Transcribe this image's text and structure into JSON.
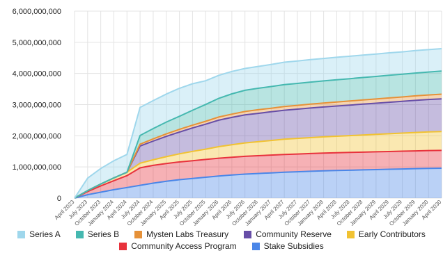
{
  "chart_data": {
    "type": "area",
    "stacked": true,
    "categories": [
      "April 2023",
      "July 2023",
      "October 2023",
      "January 2024",
      "April 2024",
      "July 2024",
      "October 2024",
      "January 2025",
      "April 2025",
      "July 2025",
      "October 2025",
      "January 2026",
      "April 2026",
      "July 2026",
      "October 2026",
      "January 2027",
      "April 2027",
      "July 2027",
      "October 2027",
      "January 2028",
      "April 2028",
      "July 2028",
      "October 2028",
      "January 2029",
      "April 2029",
      "July 2029",
      "October 2029",
      "January 2030",
      "April 2030"
    ],
    "ylim": [
      0,
      6000000000
    ],
    "yticks": [
      0,
      1000000000,
      2000000000,
      3000000000,
      4000000000,
      5000000000,
      6000000000
    ],
    "ytick_labels": [
      "0",
      "1,000,000,000",
      "2,000,000,000",
      "3,000,000,000",
      "4,000,000,000",
      "5,000,000,000",
      "6,000,000,000"
    ],
    "grid": true,
    "legend_position": "bottom",
    "series": [
      {
        "name": "Stake Subsidies",
        "color": "#4a86e8",
        "values": [
          0,
          110000000,
          190000000,
          270000000,
          340000000,
          410000000,
          480000000,
          540000000,
          590000000,
          630000000,
          670000000,
          710000000,
          740000000,
          770000000,
          790000000,
          810000000,
          830000000,
          845000000,
          860000000,
          875000000,
          885000000,
          895000000,
          905000000,
          915000000,
          925000000,
          935000000,
          945000000,
          955000000,
          960000000
        ]
      },
      {
        "name": "Community Access Program",
        "color": "#e8323c",
        "values": [
          0,
          100000000,
          200000000,
          290000000,
          380000000,
          560000000,
          570000000,
          570000000,
          570000000,
          570000000,
          570000000,
          570000000,
          570000000,
          570000000,
          570000000,
          570000000,
          570000000,
          570000000,
          570000000,
          570000000,
          570000000,
          570000000,
          570000000,
          570000000,
          570000000,
          570000000,
          570000000,
          570000000,
          570000000
        ]
      },
      {
        "name": "Early Contributors",
        "color": "#f1c232",
        "values": [
          0,
          30000000,
          60000000,
          90000000,
          110000000,
          150000000,
          180000000,
          220000000,
          260000000,
          300000000,
          330000000,
          370000000,
          400000000,
          430000000,
          450000000,
          470000000,
          490000000,
          500000000,
          510000000,
          520000000,
          530000000,
          540000000,
          550000000,
          560000000,
          570000000,
          580000000,
          590000000,
          600000000,
          605000000
        ]
      },
      {
        "name": "Community Reserve",
        "color": "#674ea7",
        "values": [
          0,
          0,
          0,
          0,
          0,
          550000000,
          600000000,
          650000000,
          700000000,
          750000000,
          800000000,
          850000000,
          880000000,
          900000000,
          910000000,
          920000000,
          930000000,
          940000000,
          950000000,
          960000000,
          970000000,
          980000000,
          990000000,
          1000000000,
          1010000000,
          1020000000,
          1030000000,
          1040000000,
          1050000000
        ]
      },
      {
        "name": "Mysten Labs Treasury",
        "color": "#e69138",
        "values": [
          0,
          0,
          0,
          0,
          0,
          60000000,
          70000000,
          80000000,
          85000000,
          90000000,
          95000000,
          100000000,
          105000000,
          110000000,
          115000000,
          115000000,
          120000000,
          120000000,
          125000000,
          125000000,
          130000000,
          130000000,
          135000000,
          135000000,
          140000000,
          140000000,
          145000000,
          145000000,
          150000000
        ]
      },
      {
        "name": "Series B",
        "color": "#45b8b0",
        "values": [
          0,
          0,
          0,
          0,
          0,
          280000000,
          330000000,
          380000000,
          420000000,
          480000000,
          540000000,
          600000000,
          650000000,
          680000000,
          690000000,
          695000000,
          700000000,
          705000000,
          708000000,
          711000000,
          714000000,
          717000000,
          720000000,
          723000000,
          726000000,
          729000000,
          732000000,
          735000000,
          740000000
        ]
      },
      {
        "name": "Series A",
        "color": "#9fd7ec",
        "values": [
          0,
          400000000,
          500000000,
          550000000,
          570000000,
          900000000,
          900000000,
          900000000,
          900000000,
          850000000,
          760000000,
          740000000,
          720000000,
          700000000,
          700000000,
          710000000,
          720000000,
          720000000,
          720000000,
          720000000,
          720000000,
          720000000,
          720000000,
          720000000,
          720000000,
          720000000,
          720000000,
          720000000,
          720000000
        ]
      }
    ],
    "legend_rows": [
      [
        "Series A",
        "Series B",
        "Mysten Labs Treasury",
        "Community Reserve",
        "Early Contributors"
      ],
      [
        "Community Access Program",
        "Stake Subsidies"
      ]
    ]
  }
}
